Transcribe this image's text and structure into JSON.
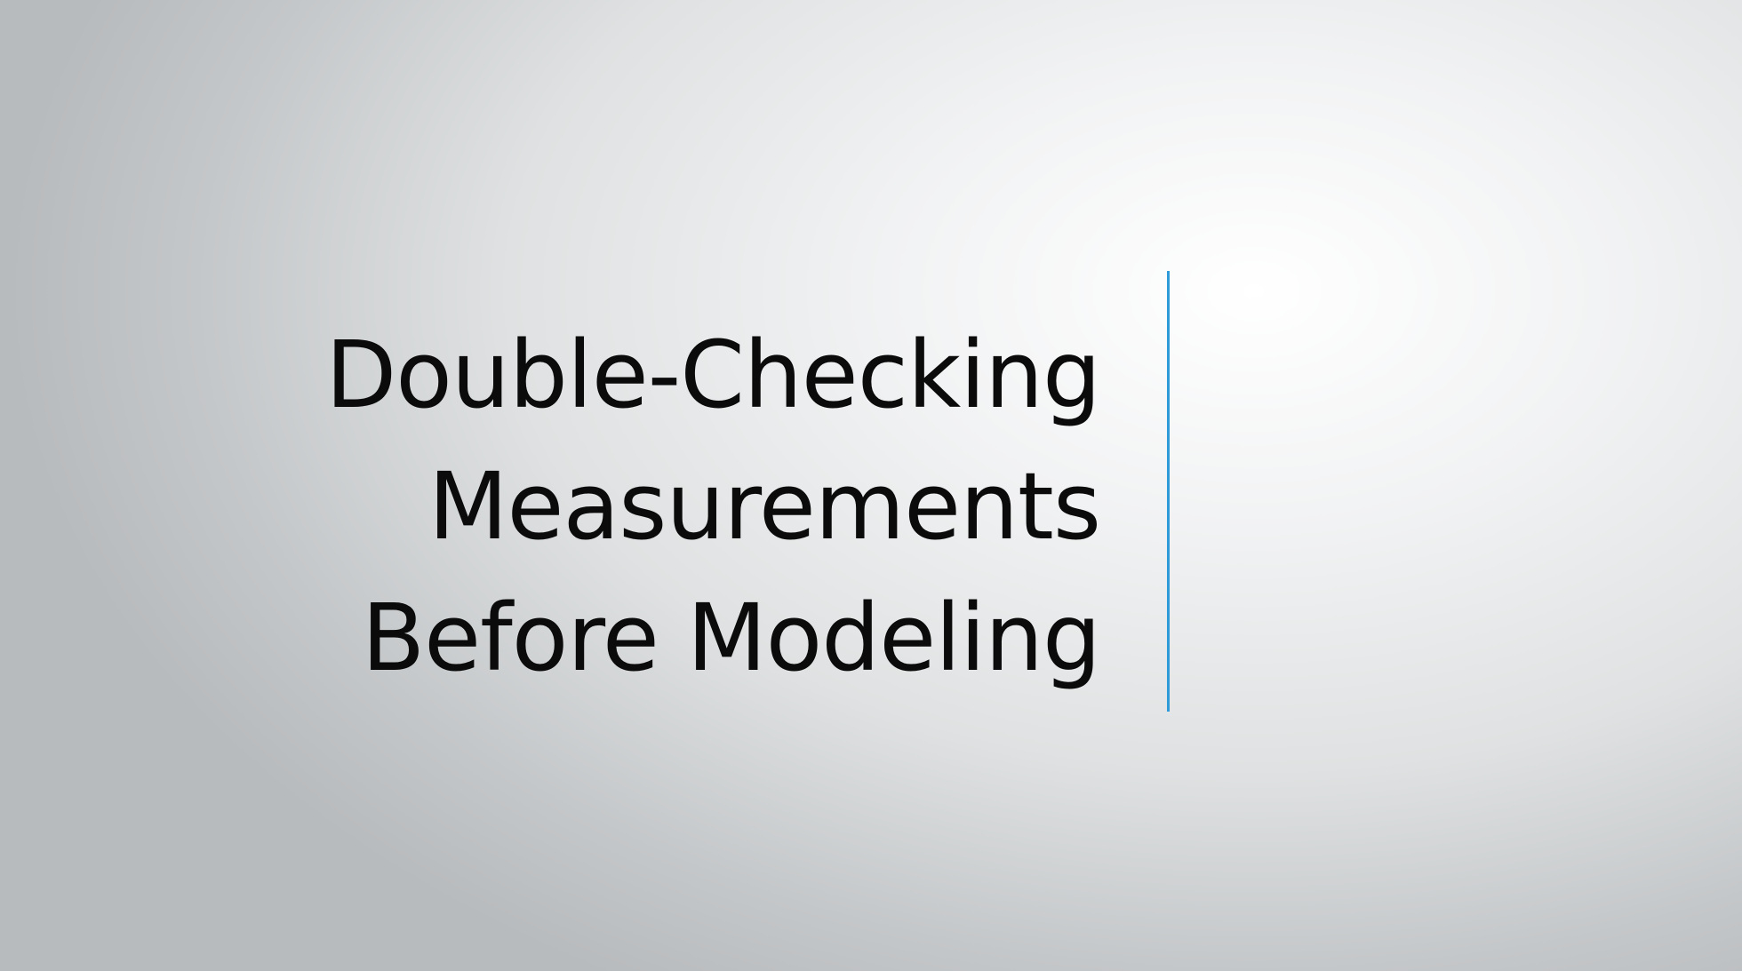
{
  "slide": {
    "title_lines": [
      "Double-Checking",
      "Measurements",
      "Before Modeling"
    ],
    "accent_color": "#2e9ad8"
  }
}
